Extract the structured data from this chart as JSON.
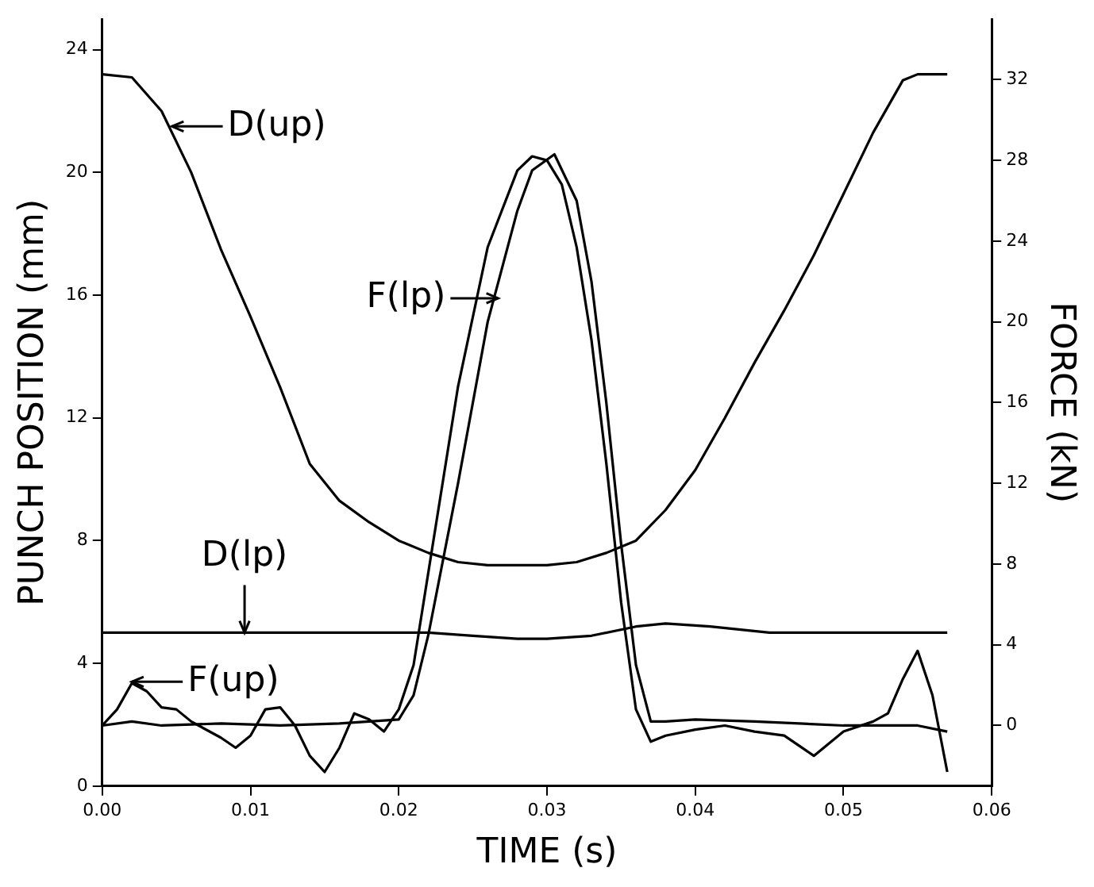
{
  "chart_data": {
    "type": "line",
    "xlabel": "TIME (s)",
    "ylabel": "PUNCH POSITION (mm)",
    "y2label": "FORCE (kN)",
    "xlim": [
      0,
      0.06
    ],
    "xticks": [
      {
        "value": 0,
        "label": "0.00"
      },
      {
        "value": 0.01,
        "label": "0.01"
      },
      {
        "value": 0.02,
        "label": "0.02"
      },
      {
        "value": 0.03,
        "label": "0.03"
      },
      {
        "value": 0.04,
        "label": "0.04"
      },
      {
        "value": 0.05,
        "label": "0.05"
      },
      {
        "value": 0.06,
        "label": "0.06"
      }
    ],
    "ylim": [
      0,
      25
    ],
    "yticks": [
      0,
      4,
      8,
      12,
      16,
      20,
      24
    ],
    "y2lim": [
      -3,
      35
    ],
    "y2ticks": [
      0,
      4,
      8,
      12,
      16,
      20,
      24,
      28,
      32
    ],
    "grid": false,
    "legend": false,
    "marker": "none",
    "line_style": "solid",
    "series": [
      {
        "color": "#000000",
        "x": [
          0,
          0.002,
          0.004,
          0.006,
          0.008,
          0.01,
          0.012,
          0.014,
          0.016,
          0.018,
          0.02,
          0.022,
          0.024,
          0.026,
          0.028,
          0.03,
          0.032,
          0.034,
          0.036,
          0.038,
          0.04,
          0.042,
          0.044,
          0.046,
          0.048,
          0.05,
          0.052,
          0.054,
          0.055,
          0.057
        ],
        "values": [
          23.2,
          23.1,
          22,
          20,
          17.5,
          15.3,
          13,
          10.5,
          9.3,
          8.6,
          8,
          7.6,
          7.3,
          7.2,
          7.2,
          7.2,
          7.3,
          7.6,
          8,
          9,
          10.3,
          12,
          13.8,
          15.5,
          17.3,
          19.3,
          21.3,
          23,
          23.2,
          23.2
        ]
      },
      {
        "color": "#000000",
        "x": [
          0,
          0.01,
          0.02,
          0.022,
          0.025,
          0.028,
          0.03,
          0.033,
          0.036,
          0.038,
          0.041,
          0.045,
          0.05,
          0.057
        ],
        "values": [
          5,
          5,
          5,
          5,
          4.9,
          4.8,
          4.8,
          4.9,
          5.2,
          5.3,
          5.2,
          5,
          5,
          5
        ]
      },
      {
        "color": "#000000",
        "axis": "y2",
        "x": [
          0,
          0.001,
          0.002,
          0.003,
          0.004,
          0.005,
          0.006,
          0.008,
          0.009,
          0.01,
          0.011,
          0.012,
          0.013,
          0.014,
          0.015,
          0.016,
          0.017,
          0.018,
          0.019,
          0.02,
          0.021,
          0.022,
          0.024,
          0.026,
          0.028,
          0.029,
          0.03,
          0.031,
          0.032,
          0.033,
          0.034,
          0.035,
          0.036,
          0.037,
          0.038,
          0.04,
          0.042,
          0.044,
          0.046,
          0.048,
          0.05,
          0.052,
          0.053,
          0.054,
          0.055,
          0.056,
          0.057
        ],
        "values": [
          0,
          0.8,
          2.1,
          1.7,
          0.9,
          0.8,
          0.2,
          -0.6,
          -1.1,
          -0.5,
          0.8,
          0.9,
          0,
          -1.5,
          -2.3,
          -1.1,
          0.6,
          0.3,
          -0.3,
          0.8,
          3,
          7.6,
          16.8,
          23.7,
          27.5,
          28.2,
          28,
          26.8,
          23.7,
          19.1,
          13,
          6.1,
          0.8,
          -0.8,
          -0.5,
          -0.2,
          0,
          -0.3,
          -0.5,
          -1.5,
          -0.3,
          0.2,
          0.6,
          2.3,
          3.7,
          1.5,
          -2.3
        ]
      },
      {
        "color": "#000000",
        "axis": "y2",
        "x": [
          0,
          0.002,
          0.004,
          0.008,
          0.012,
          0.016,
          0.02,
          0.021,
          0.022,
          0.024,
          0.026,
          0.028,
          0.029,
          0.0305,
          0.032,
          0.033,
          0.034,
          0.035,
          0.036,
          0.037,
          0.038,
          0.04,
          0.044,
          0.05,
          0.055,
          0.057
        ],
        "values": [
          0,
          0.2,
          0,
          0.1,
          0,
          0.1,
          0.3,
          1.5,
          4.5,
          12,
          20,
          25.5,
          27.5,
          28.3,
          26,
          22,
          16,
          9,
          3,
          0.2,
          0.2,
          0.3,
          0.2,
          0,
          0,
          -0.3
        ]
      }
    ],
    "annotations": [
      {
        "text": "D(up)",
        "x": 0.0047,
        "y": 21.5
      },
      {
        "text": "F(lp)",
        "x": 0.0267,
        "y": 15.9
      },
      {
        "text": "D(lp)",
        "x": 0.0096,
        "y": 5
      },
      {
        "text": "F(up)",
        "x": 0.002,
        "y": 3.4
      }
    ]
  }
}
